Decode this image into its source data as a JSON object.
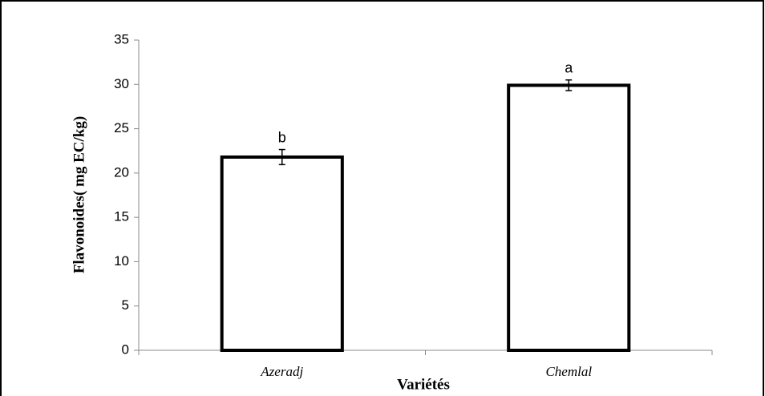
{
  "chart_data": {
    "type": "bar",
    "x_label": "Variétés",
    "y_label": "Flavonoides( mg EC/kg)",
    "categories": [
      "Azeradj",
      "Chemlal"
    ],
    "values": [
      21.8,
      29.9
    ],
    "errors": [
      0.85,
      0.6
    ],
    "annotations": [
      "b",
      "a"
    ],
    "color": "#ffffff",
    "edge_color": "#000000",
    "ylim": [
      0,
      35
    ],
    "yticks": [
      0,
      5,
      10,
      15,
      20,
      25,
      30,
      35
    ],
    "grid": false
  }
}
